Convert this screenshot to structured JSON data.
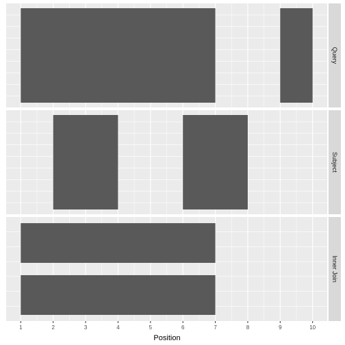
{
  "chart_data": {
    "type": "bar",
    "xlabel": "Position",
    "xlim": [
      0.55,
      10.45
    ],
    "xticks": [
      1,
      2,
      3,
      4,
      5,
      6,
      7,
      8,
      9,
      10
    ],
    "panel_background": "#ebebeb",
    "grid_color": "#ffffff",
    "bar_color": "#595959",
    "strip_color": "#d9d9d9",
    "panels": [
      {
        "label": "Query",
        "rows": 1,
        "ranges": [
          {
            "start": 1,
            "end": 7,
            "row": 0
          },
          {
            "start": 9,
            "end": 10,
            "row": 0
          }
        ]
      },
      {
        "label": "Subject",
        "rows": 1,
        "ranges": [
          {
            "start": 2,
            "end": 4,
            "row": 0
          },
          {
            "start": 6,
            "end": 8,
            "row": 0
          }
        ]
      },
      {
        "label": "Inner Join",
        "rows": 2,
        "ranges": [
          {
            "start": 1,
            "end": 7,
            "row": 0
          },
          {
            "start": 1,
            "end": 7,
            "row": 1
          }
        ]
      }
    ]
  }
}
